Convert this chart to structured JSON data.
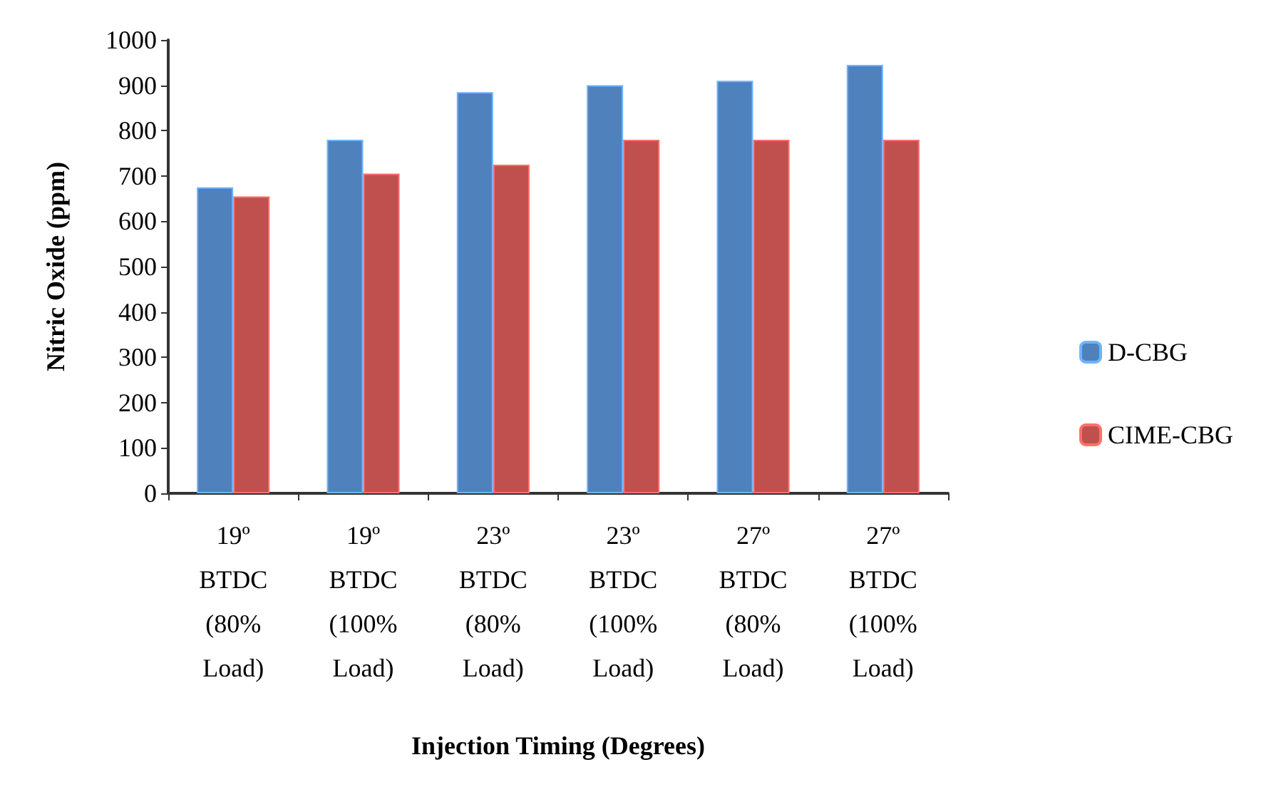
{
  "chart_data": {
    "type": "bar",
    "xlabel": "Injection Timing (Degrees)",
    "ylabel": "Nitric Oxide (ppm)",
    "categories": [
      "19º\nBTDC\n(80%\nLoad)",
      "19º\nBTDC\n(100%\nLoad)",
      "23º\nBTDC\n(80%\nLoad)",
      "23º\nBTDC\n(100%\nLoad)",
      "27º\nBTDC\n(80%\nLoad)",
      "27º\nBTDC\n(100%\nLoad)"
    ],
    "series": [
      {
        "name": "D-CBG",
        "color": "#4f81bd",
        "values": [
          675,
          780,
          885,
          900,
          910,
          945
        ]
      },
      {
        "name": "CIME-CBG",
        "color": "#c0504d",
        "values": [
          655,
          705,
          725,
          780,
          780,
          780
        ]
      }
    ],
    "ylim": [
      0,
      1000
    ],
    "yticks": [
      0,
      100,
      200,
      300,
      400,
      500,
      600,
      700,
      800,
      900,
      1000
    ],
    "grid": false,
    "legend": "right"
  }
}
